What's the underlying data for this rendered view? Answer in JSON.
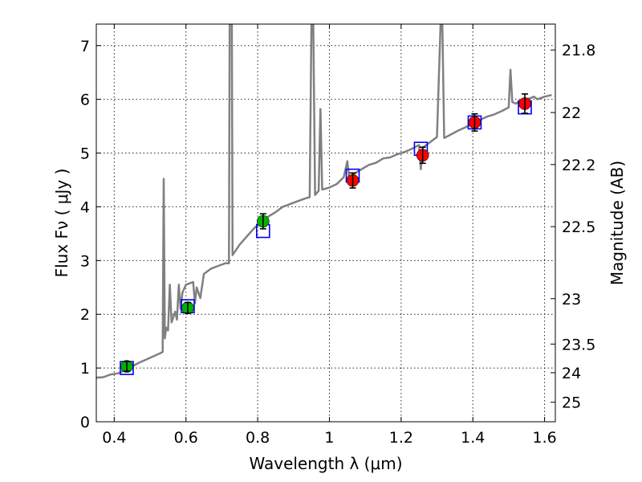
{
  "chart_data": {
    "type": "scatter",
    "title": "",
    "xlabel": "Wavelength  λ (μm)",
    "ylabel": "Flux  Fν  ( μJy )",
    "ylabel_right": "Magnitude (AB)",
    "xlim": [
      0.35,
      1.63
    ],
    "ylim": [
      0,
      7.4
    ],
    "grid": true,
    "xticks": [
      0.4,
      0.6,
      0.8,
      1.0,
      1.2,
      1.4,
      1.6
    ],
    "xtick_labels": [
      "0.4",
      "0.6",
      "0.8",
      "1",
      "1.2",
      "1.4",
      "1.6"
    ],
    "yticks": [
      0,
      1,
      2,
      3,
      4,
      5,
      6,
      7
    ],
    "ytick_labels": [
      "0",
      "1",
      "2",
      "3",
      "4",
      "5",
      "6",
      "7"
    ],
    "right_ticks": [
      {
        "mag": 21.8,
        "label": "21.8"
      },
      {
        "mag": 22.0,
        "label": "22"
      },
      {
        "mag": 22.2,
        "label": "22.2"
      },
      {
        "mag": 22.5,
        "label": "22.5"
      },
      {
        "mag": 23.0,
        "label": "23"
      },
      {
        "mag": 23.5,
        "label": "23.5"
      },
      {
        "mag": 24.0,
        "label": "24"
      },
      {
        "mag": 25.0,
        "label": "25"
      }
    ],
    "series": [
      {
        "name": "model spectrum",
        "kind": "line",
        "color": "#808080",
        "points": [
          [
            0.35,
            0.82
          ],
          [
            0.37,
            0.83
          ],
          [
            0.39,
            0.88
          ],
          [
            0.41,
            0.9
          ],
          [
            0.43,
            0.96
          ],
          [
            0.45,
            1.03
          ],
          [
            0.47,
            1.1
          ],
          [
            0.49,
            1.16
          ],
          [
            0.51,
            1.22
          ],
          [
            0.53,
            1.28
          ],
          [
            0.535,
            1.3
          ],
          [
            0.538,
            4.52
          ],
          [
            0.541,
            1.55
          ],
          [
            0.545,
            1.75
          ],
          [
            0.55,
            1.7
          ],
          [
            0.555,
            2.55
          ],
          [
            0.56,
            1.85
          ],
          [
            0.57,
            2.05
          ],
          [
            0.575,
            1.9
          ],
          [
            0.58,
            2.55
          ],
          [
            0.585,
            2.1
          ],
          [
            0.59,
            2.4
          ],
          [
            0.6,
            2.55
          ],
          [
            0.62,
            2.6
          ],
          [
            0.625,
            2.2
          ],
          [
            0.63,
            2.5
          ],
          [
            0.64,
            2.3
          ],
          [
            0.65,
            2.75
          ],
          [
            0.67,
            2.85
          ],
          [
            0.69,
            2.9
          ],
          [
            0.71,
            2.95
          ],
          [
            0.72,
            2.95
          ],
          [
            0.722,
            7.4
          ],
          [
            0.728,
            7.4
          ],
          [
            0.73,
            3.1
          ],
          [
            0.75,
            3.3
          ],
          [
            0.77,
            3.45
          ],
          [
            0.79,
            3.6
          ],
          [
            0.81,
            3.72
          ],
          [
            0.83,
            3.82
          ],
          [
            0.85,
            3.9
          ],
          [
            0.87,
            4.0
          ],
          [
            0.89,
            4.05
          ],
          [
            0.91,
            4.1
          ],
          [
            0.93,
            4.15
          ],
          [
            0.945,
            4.18
          ],
          [
            0.95,
            7.4
          ],
          [
            0.955,
            7.4
          ],
          [
            0.96,
            4.22
          ],
          [
            0.97,
            4.3
          ],
          [
            0.975,
            5.82
          ],
          [
            0.98,
            4.32
          ],
          [
            1.0,
            4.36
          ],
          [
            1.02,
            4.42
          ],
          [
            1.04,
            4.55
          ],
          [
            1.05,
            4.85
          ],
          [
            1.055,
            4.55
          ],
          [
            1.07,
            4.62
          ],
          [
            1.09,
            4.7
          ],
          [
            1.11,
            4.78
          ],
          [
            1.13,
            4.82
          ],
          [
            1.15,
            4.9
          ],
          [
            1.17,
            4.92
          ],
          [
            1.19,
            4.98
          ],
          [
            1.21,
            5.02
          ],
          [
            1.23,
            5.08
          ],
          [
            1.25,
            5.15
          ],
          [
            1.255,
            4.7
          ],
          [
            1.26,
            5.1
          ],
          [
            1.28,
            5.2
          ],
          [
            1.3,
            5.3
          ],
          [
            1.31,
            7.4
          ],
          [
            1.315,
            7.4
          ],
          [
            1.32,
            5.28
          ],
          [
            1.34,
            5.35
          ],
          [
            1.36,
            5.42
          ],
          [
            1.38,
            5.48
          ],
          [
            1.4,
            5.55
          ],
          [
            1.42,
            5.62
          ],
          [
            1.44,
            5.68
          ],
          [
            1.46,
            5.72
          ],
          [
            1.48,
            5.78
          ],
          [
            1.5,
            5.85
          ],
          [
            1.505,
            6.55
          ],
          [
            1.51,
            5.95
          ],
          [
            1.52,
            5.92
          ],
          [
            1.54,
            6.0
          ],
          [
            1.56,
            6.02
          ],
          [
            1.57,
            6.05
          ],
          [
            1.58,
            6.0
          ],
          [
            1.6,
            6.05
          ],
          [
            1.62,
            6.08
          ]
        ]
      },
      {
        "name": "green photometry",
        "kind": "points",
        "color": "#00b200",
        "points": [
          {
            "x": 0.435,
            "y": 1.03,
            "err": 0.09
          },
          {
            "x": 0.605,
            "y": 2.12,
            "err": 0.1
          },
          {
            "x": 0.815,
            "y": 3.73,
            "err": 0.14
          }
        ]
      },
      {
        "name": "red photometry",
        "kind": "points",
        "color": "#ff0000",
        "points": [
          {
            "x": 1.065,
            "y": 4.49,
            "err": 0.14
          },
          {
            "x": 1.26,
            "y": 4.96,
            "err": 0.15
          },
          {
            "x": 1.405,
            "y": 5.57,
            "err": 0.16
          },
          {
            "x": 1.545,
            "y": 5.92,
            "err": 0.18
          }
        ]
      },
      {
        "name": "model band fluxes",
        "kind": "squares",
        "color": "#0000ff",
        "points": [
          {
            "x": 0.435,
            "y": 1.0
          },
          {
            "x": 0.605,
            "y": 2.15
          },
          {
            "x": 0.815,
            "y": 3.55
          },
          {
            "x": 1.065,
            "y": 4.58
          },
          {
            "x": 1.255,
            "y": 5.08
          },
          {
            "x": 1.405,
            "y": 5.57
          },
          {
            "x": 1.545,
            "y": 5.85
          }
        ]
      }
    ]
  }
}
